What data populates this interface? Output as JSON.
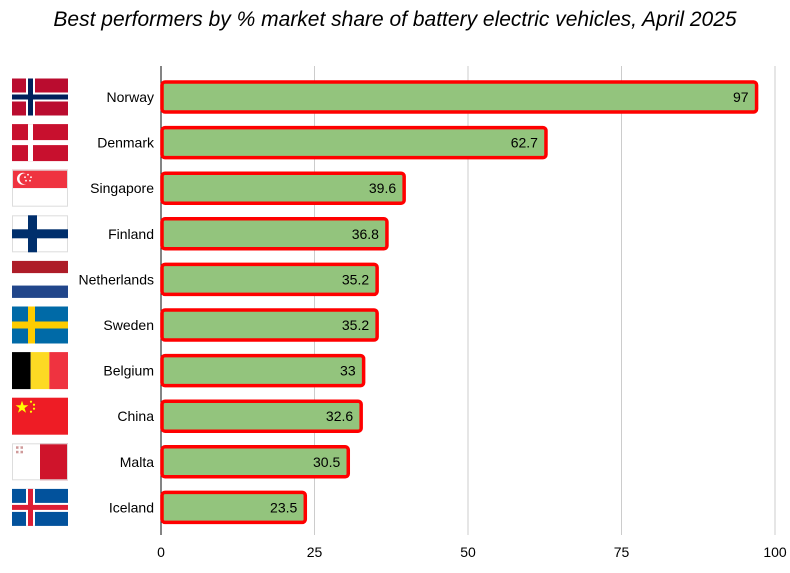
{
  "chart_data": {
    "type": "bar",
    "orientation": "horizontal",
    "title": "Best performers by % market share of battery electric vehicles, April 2025",
    "categories": [
      "Norway",
      "Denmark",
      "Singapore",
      "Finland",
      "Netherlands",
      "Sweden",
      "Belgium",
      "China",
      "Malta",
      "Iceland"
    ],
    "values": [
      97,
      62.7,
      39.6,
      36.8,
      35.2,
      35.2,
      33,
      32.6,
      30.5,
      23.5
    ],
    "value_labels": [
      "97",
      "62.7",
      "39.6",
      "36.8",
      "35.2",
      "35.2",
      "33",
      "32.6",
      "30.5",
      "23.5"
    ],
    "x_ticks": [
      "0",
      "25",
      "50",
      "75",
      "100"
    ],
    "xlim": [
      0,
      100
    ],
    "xlabel": "",
    "ylabel": "",
    "grid": "vertical",
    "legend": "none",
    "bar_color": "#93c47d",
    "bar_outline_color": "#ff0000",
    "flags": [
      "norway-flag-icon",
      "denmark-flag-icon",
      "singapore-flag-icon",
      "finland-flag-icon",
      "netherlands-flag-icon",
      "sweden-flag-icon",
      "belgium-flag-icon",
      "china-flag-icon",
      "malta-flag-icon",
      "iceland-flag-icon"
    ]
  }
}
